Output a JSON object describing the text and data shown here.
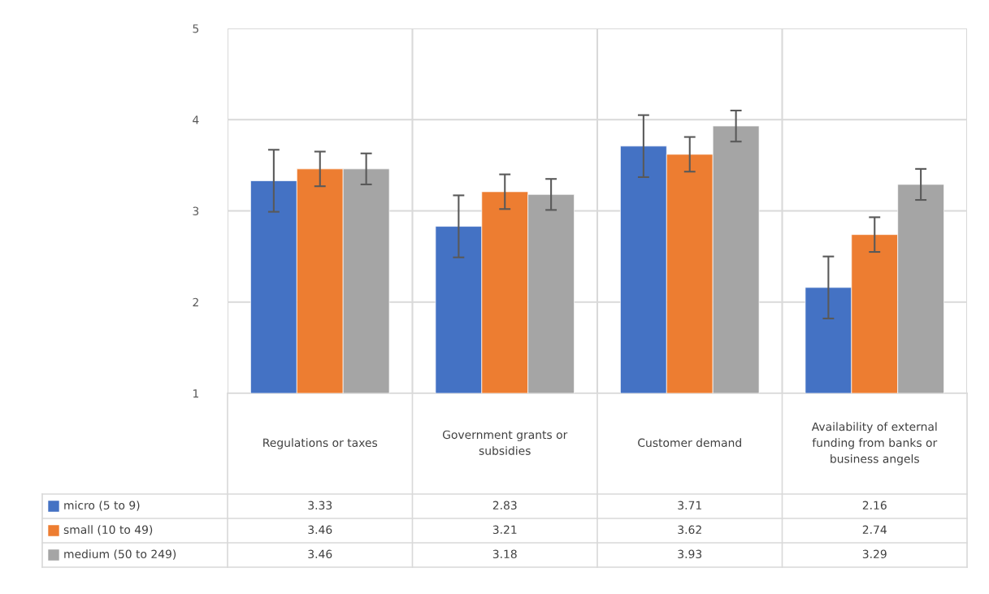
{
  "chart_data": {
    "type": "bar",
    "categories": [
      "Regulations or taxes",
      "Government grants or subsidies",
      "Customer demand",
      "Availability of external funding from banks or business angels"
    ],
    "series": [
      {
        "name": "micro (5 to 9)",
        "color": "#4472c4",
        "values": [
          3.33,
          2.83,
          3.71,
          2.16
        ],
        "errors": [
          0.34,
          0.34,
          0.34,
          0.34
        ]
      },
      {
        "name": "small (10 to 49)",
        "color": "#ed7d31",
        "values": [
          3.46,
          3.21,
          3.62,
          2.74
        ],
        "errors": [
          0.19,
          0.19,
          0.19,
          0.19
        ]
      },
      {
        "name": "medium (50 to 249)",
        "color": "#a5a5a5",
        "values": [
          3.46,
          3.18,
          3.93,
          3.29
        ],
        "errors": [
          0.17,
          0.17,
          0.17,
          0.17
        ]
      }
    ],
    "ylim": [
      1,
      5
    ],
    "yticks": [
      1,
      2,
      3,
      4,
      5
    ],
    "grid": "y",
    "data_labels": true,
    "legend": "bottom left"
  }
}
